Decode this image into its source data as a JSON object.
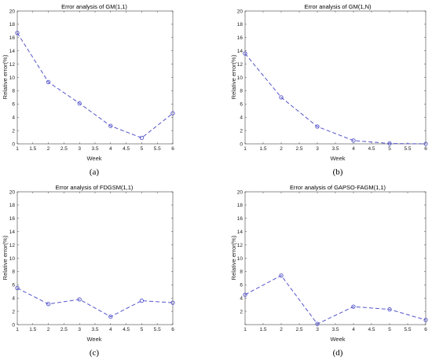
{
  "chart_data": [
    {
      "type": "line",
      "title": "Error analysis of GM(1,1)",
      "caption": "(a)",
      "xlabel": "Week",
      "ylabel": "Relative error(%)",
      "xlim": [
        1,
        6
      ],
      "ylim": [
        0,
        20
      ],
      "xticks": [
        "1",
        "1.5",
        "2",
        "2.5",
        "3",
        "3.5",
        "4",
        "4.5",
        "5",
        "5.5",
        "6"
      ],
      "yticks": [
        "0",
        "2",
        "4",
        "6",
        "8",
        "10",
        "12",
        "14",
        "16",
        "18",
        "20"
      ],
      "grid": false,
      "x": [
        1,
        2,
        3,
        4,
        5,
        6
      ],
      "series": [
        {
          "values": [
            16.7,
            9.3,
            6.1,
            2.7,
            0.9,
            4.6
          ],
          "color": "#5555cc"
        }
      ]
    },
    {
      "type": "line",
      "title": "Error analysis of GM(1,N)",
      "caption": "(b)",
      "xlabel": "Week",
      "ylabel": "Relative error(%)",
      "xlim": [
        1,
        6
      ],
      "ylim": [
        0,
        20
      ],
      "xticks": [
        "1",
        "1.5",
        "2",
        "2.5",
        "3",
        "3.5",
        "4",
        "4.5",
        "5",
        "5.5",
        "6"
      ],
      "yticks": [
        "0",
        "2",
        "4",
        "6",
        "8",
        "10",
        "12",
        "14",
        "16",
        "18",
        "20"
      ],
      "grid": false,
      "x": [
        1,
        2,
        3,
        4,
        5,
        6
      ],
      "series": [
        {
          "values": [
            13.6,
            7.0,
            2.6,
            0.5,
            0.05,
            0.0
          ],
          "color": "#5555cc"
        }
      ]
    },
    {
      "type": "line",
      "title": "Error analysis of FDGSM(1,1)",
      "caption": "(c)",
      "xlabel": "Week",
      "ylabel": "Relative error(%)",
      "xlim": [
        1,
        6
      ],
      "ylim": [
        0,
        20
      ],
      "xticks": [
        "1",
        "1.5",
        "2",
        "2.5",
        "3",
        "3.5",
        "4",
        "4.5",
        "5",
        "5.5",
        "6"
      ],
      "yticks": [
        "0",
        "2",
        "4",
        "6",
        "8",
        "10",
        "12",
        "14",
        "16",
        "18",
        "20"
      ],
      "grid": false,
      "x": [
        1,
        2,
        3,
        4,
        5,
        6
      ],
      "series": [
        {
          "values": [
            5.5,
            3.1,
            3.8,
            1.2,
            3.6,
            3.3
          ],
          "color": "#5555cc"
        }
      ]
    },
    {
      "type": "line",
      "title": "Error analysis of GAPSO-FAGM(1,1)",
      "caption": "(d)",
      "xlabel": "Week",
      "ylabel": "Relative error(%)",
      "xlim": [
        1,
        6
      ],
      "ylim": [
        0,
        20
      ],
      "xticks": [
        "1",
        "1.5",
        "2",
        "2.5",
        "3",
        "3.5",
        "4",
        "4.5",
        "5",
        "5.5",
        "6"
      ],
      "yticks": [
        "",
        "2",
        "4",
        "6",
        "8",
        "10",
        "12",
        "14",
        "16",
        "18",
        "20"
      ],
      "grid": false,
      "x": [
        1,
        2,
        3,
        4,
        5,
        6
      ],
      "series": [
        {
          "values": [
            4.5,
            7.4,
            0.1,
            2.7,
            2.3,
            0.7
          ],
          "color": "#5555cc"
        }
      ]
    }
  ]
}
